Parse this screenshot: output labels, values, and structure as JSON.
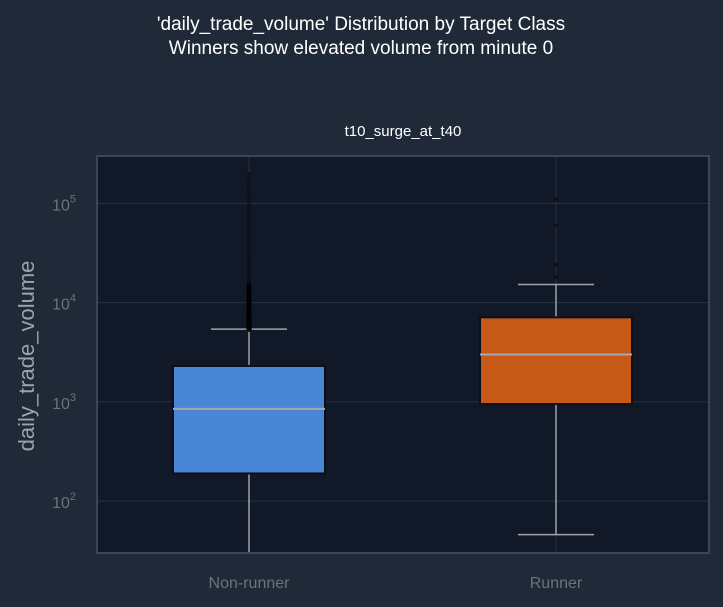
{
  "chart_data": {
    "type": "box",
    "title": "'daily_trade_volume' Distribution by Target Class",
    "subtitle": "Winners show elevated volume from minute 0",
    "panel_title": "t10_surge_at_t40",
    "xlabel": "",
    "ylabel": "daily_trade_volume",
    "yscale": "log",
    "ylim": [
      30,
      300000
    ],
    "grid": true,
    "categories": [
      "Non-runner",
      "Runner"
    ],
    "boxes": [
      {
        "name": "Non-runner",
        "whisker_low": 30,
        "q1": 190,
        "median": 850,
        "q3": 2300,
        "whisker_high": 5400,
        "outliers_range": [
          5400,
          200000
        ],
        "color": "#4a86d6"
      },
      {
        "name": "Runner",
        "whisker_low": 46,
        "q1": 950,
        "median": 3000,
        "q3": 7100,
        "whisker_high": 15200,
        "outliers": [
          18000,
          24000,
          60000,
          110000
        ],
        "color": "#c85a17"
      }
    ],
    "yticks": [
      100,
      1000,
      10000,
      100000
    ]
  },
  "colors": {
    "figure_bg": "#1f2937",
    "plot_bg": "#111827",
    "grid": "#263143",
    "frame": "#3a4556",
    "whisker": "#9ca3af",
    "median": "#a3a9b2"
  }
}
